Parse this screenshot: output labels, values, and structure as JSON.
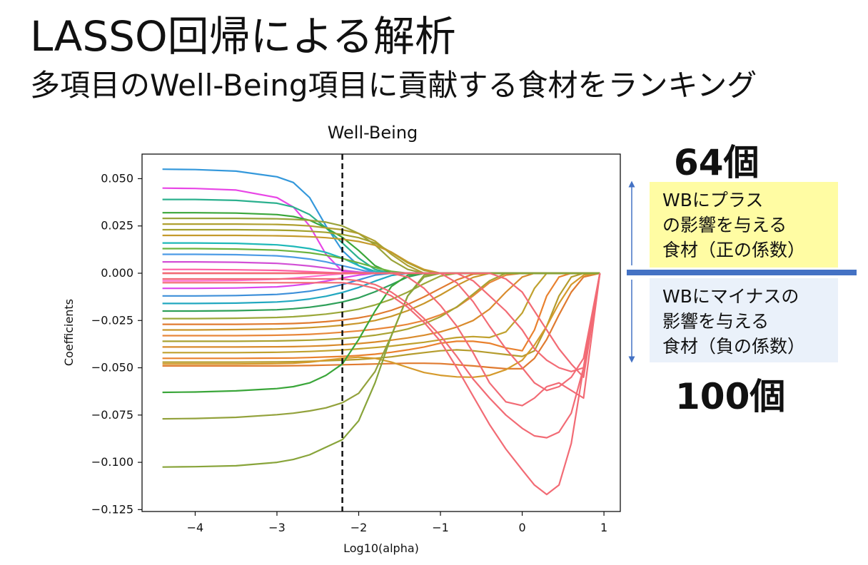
{
  "slide": {
    "title": "LASSO回帰による解析",
    "subtitle": "多項目のWell-Being項目に貢献する食材をランキング"
  },
  "annotations": {
    "positive_count": "64個",
    "negative_count": "100個",
    "positive_box": [
      "WBにプラス",
      "の影響を与える",
      "食材（正の係数）"
    ],
    "negative_box": [
      "WBにマイナスの",
      "影響を与える",
      "食材（負の係数）"
    ],
    "arrow_color": "#4472c4",
    "positive_box_color": "#fffca3",
    "negative_box_color": "#eaf1fa"
  },
  "chart_data": {
    "type": "line",
    "title": "Well-Being",
    "xlabel": "Log10(alpha)",
    "ylabel": "Coefficients",
    "xlim": [
      -4.65,
      1.2
    ],
    "ylim": [
      -0.126,
      0.063
    ],
    "x_ticks": [
      {
        "value": -4,
        "label": "−4"
      },
      {
        "value": -3,
        "label": "−3"
      },
      {
        "value": -2,
        "label": "−2"
      },
      {
        "value": -1,
        "label": "−1"
      },
      {
        "value": 0,
        "label": "0"
      },
      {
        "value": 1,
        "label": "1"
      }
    ],
    "y_ticks": [
      {
        "value": 0.05,
        "label": "0.050"
      },
      {
        "value": 0.025,
        "label": "0.025"
      },
      {
        "value": 0.0,
        "label": "0.000"
      },
      {
        "value": -0.025,
        "label": "−0.025"
      },
      {
        "value": -0.05,
        "label": "−0.050"
      },
      {
        "value": -0.075,
        "label": "−0.075"
      },
      {
        "value": -0.1,
        "label": "−0.100"
      },
      {
        "value": -0.125,
        "label": "−0.125"
      }
    ],
    "selected_alpha_log10": -2.2,
    "x": [
      -4.4,
      -4.0,
      -3.5,
      -3.0,
      -2.8,
      -2.6,
      -2.4,
      -2.2,
      -2.0,
      -1.8,
      -1.6,
      -1.4,
      -1.2,
      -1.0,
      -0.8,
      -0.6,
      -0.4,
      -0.2,
      0.0,
      0.15,
      0.3,
      0.45,
      0.6,
      0.75,
      0.95
    ],
    "series": [
      {
        "color": "#3498db",
        "values": [
          0.055,
          0.0548,
          0.054,
          0.051,
          0.048,
          0.04,
          0.025,
          0.012,
          0.004,
          0,
          0,
          0,
          0,
          0,
          0,
          0,
          0,
          0,
          0,
          0,
          0,
          0,
          0,
          0,
          0
        ]
      },
      {
        "color": "#e846e6",
        "values": [
          0.045,
          0.0448,
          0.044,
          0.04,
          0.035,
          0.025,
          0.01,
          0.001,
          0,
          0,
          0,
          0,
          0,
          0,
          0,
          0,
          0,
          0,
          0,
          0,
          0,
          0,
          0,
          0,
          0
        ]
      },
      {
        "color": "#2bb08e",
        "values": [
          0.039,
          0.039,
          0.0385,
          0.037,
          0.035,
          0.031,
          0.024,
          0.016,
          0.008,
          0.002,
          0,
          0,
          0,
          0,
          0,
          0,
          0,
          0,
          0,
          0,
          0,
          0,
          0,
          0,
          0
        ]
      },
      {
        "color": "#3aa63a",
        "values": [
          0.032,
          0.032,
          0.0318,
          0.031,
          0.03,
          0.028,
          0.024,
          0.019,
          0.012,
          0.004,
          0,
          0,
          0,
          0,
          0,
          0,
          0,
          0,
          0,
          0,
          0,
          0,
          0,
          0,
          0
        ]
      },
      {
        "color": "#9aa33a",
        "values": [
          0.029,
          0.029,
          0.029,
          0.0288,
          0.0285,
          0.028,
          0.027,
          0.025,
          0.021,
          0.015,
          0.007,
          0.002,
          0,
          0,
          0,
          0,
          0,
          0,
          0,
          0,
          0,
          0,
          0,
          0,
          0
        ]
      },
      {
        "color": "#b0a030",
        "values": [
          0.026,
          0.026,
          0.026,
          0.0258,
          0.0255,
          0.025,
          0.024,
          0.023,
          0.021,
          0.017,
          0.01,
          0.004,
          0,
          0,
          0,
          0,
          0,
          0,
          0,
          0,
          0,
          0,
          0,
          0,
          0
        ]
      },
      {
        "color": "#a3a12e",
        "values": [
          0.023,
          0.023,
          0.023,
          0.0228,
          0.0226,
          0.0222,
          0.0216,
          0.0205,
          0.0188,
          0.016,
          0.011,
          0.0055,
          0.0015,
          0,
          0,
          0,
          0,
          0,
          0,
          0,
          0,
          0,
          0,
          0,
          0
        ]
      },
      {
        "color": "#c49a2c",
        "values": [
          0.02,
          0.02,
          0.02,
          0.0198,
          0.0196,
          0.0193,
          0.0188,
          0.018,
          0.0168,
          0.0148,
          0.0112,
          0.006,
          0.002,
          0,
          0,
          0,
          0,
          0,
          0,
          0,
          0,
          0,
          0,
          0,
          0
        ]
      },
      {
        "color": "#1fb8b8",
        "values": [
          0.016,
          0.016,
          0.0158,
          0.015,
          0.0142,
          0.013,
          0.011,
          0.008,
          0.004,
          0.001,
          0,
          0,
          0,
          0,
          0,
          0,
          0,
          0,
          0,
          0,
          0,
          0,
          0,
          0,
          0
        ]
      },
      {
        "color": "#6cb33e",
        "values": [
          0.013,
          0.013,
          0.0128,
          0.0122,
          0.0116,
          0.0108,
          0.0095,
          0.0078,
          0.0055,
          0.003,
          0.001,
          0,
          0,
          0,
          0,
          0,
          0,
          0,
          0,
          0,
          0,
          0,
          0,
          0,
          0
        ]
      },
      {
        "color": "#4d9be6",
        "values": [
          0.01,
          0.01,
          0.0098,
          0.0092,
          0.0085,
          0.0075,
          0.006,
          0.004,
          0.002,
          0,
          0,
          0,
          0,
          0,
          0,
          0,
          0,
          0,
          0,
          0,
          0,
          0,
          0,
          0,
          0
        ]
      },
      {
        "color": "#d24fd6",
        "values": [
          0.006,
          0.006,
          0.0058,
          0.0052,
          0.0046,
          0.0038,
          0.0028,
          0.0016,
          0.0006,
          0,
          0,
          0,
          0,
          0,
          0,
          0,
          0,
          0,
          0,
          0,
          0,
          0,
          0,
          0,
          0
        ]
      },
      {
        "color": "#ff5da2",
        "values": [
          0.002,
          0.002,
          0.0018,
          0.0015,
          0.0012,
          0.0008,
          0.0004,
          0.0001,
          0,
          0,
          0,
          0,
          0,
          0,
          0,
          0,
          0,
          0,
          0,
          0,
          0,
          0,
          0,
          0,
          0
        ]
      },
      {
        "color": "#ff6fcf",
        "values": [
          -0.004,
          -0.004,
          -0.0038,
          -0.0032,
          -0.0026,
          -0.0018,
          -0.001,
          -0.0003,
          0,
          0,
          0,
          0,
          0,
          0,
          0,
          0,
          0,
          0,
          0,
          0,
          0,
          0,
          0,
          0,
          0
        ]
      },
      {
        "color": "#d946ef",
        "values": [
          -0.008,
          -0.008,
          -0.0078,
          -0.0072,
          -0.0065,
          -0.0055,
          -0.0042,
          -0.0025,
          -0.001,
          0,
          0,
          0,
          0,
          0,
          0,
          0,
          0,
          0,
          0,
          0,
          0,
          0,
          0,
          0,
          0
        ]
      },
      {
        "color": "#3d8fd9",
        "values": [
          -0.012,
          -0.012,
          -0.0118,
          -0.0112,
          -0.0105,
          -0.0095,
          -0.008,
          -0.006,
          -0.0035,
          -0.001,
          0,
          0,
          0,
          0,
          0,
          0,
          0,
          0,
          0,
          0,
          0,
          0,
          0,
          0,
          0
        ]
      },
      {
        "color": "#22a8c0",
        "values": [
          -0.016,
          -0.016,
          -0.0158,
          -0.0152,
          -0.0146,
          -0.0136,
          -0.0122,
          -0.0102,
          -0.0075,
          -0.0042,
          -0.0012,
          0,
          0,
          0,
          0,
          0,
          0,
          0,
          0,
          0,
          0,
          0,
          0,
          0,
          0
        ]
      },
      {
        "color": "#2fa05a",
        "values": [
          -0.02,
          -0.02,
          -0.0198,
          -0.0193,
          -0.0188,
          -0.018,
          -0.0168,
          -0.0152,
          -0.013,
          -0.0098,
          -0.006,
          -0.002,
          0,
          0,
          0,
          0,
          0,
          0,
          0,
          0,
          0,
          0,
          0,
          0,
          0
        ]
      },
      {
        "color": "#9ba83a",
        "values": [
          -0.024,
          -0.024,
          -0.0238,
          -0.0234,
          -0.023,
          -0.0224,
          -0.0216,
          -0.0205,
          -0.019,
          -0.0168,
          -0.0138,
          -0.01,
          -0.0055,
          -0.0015,
          0,
          0,
          0,
          0,
          0,
          0,
          0,
          0,
          0,
          0,
          0
        ]
      },
      {
        "color": "#e07b30",
        "values": [
          -0.027,
          -0.027,
          -0.027,
          -0.0268,
          -0.0266,
          -0.0262,
          -0.0256,
          -0.0248,
          -0.0236,
          -0.022,
          -0.0196,
          -0.0165,
          -0.0125,
          -0.008,
          -0.0035,
          -0.0005,
          0,
          0,
          0,
          0,
          0,
          0,
          0,
          0,
          0
        ]
      },
      {
        "color": "#c9962a",
        "values": [
          -0.03,
          -0.03,
          -0.0298,
          -0.0295,
          -0.0292,
          -0.0288,
          -0.0282,
          -0.0275,
          -0.0265,
          -0.025,
          -0.0228,
          -0.0198,
          -0.016,
          -0.0115,
          -0.0065,
          -0.0022,
          0,
          0,
          0,
          0,
          0,
          0,
          0,
          0,
          0
        ]
      },
      {
        "color": "#e8873a",
        "values": [
          -0.033,
          -0.033,
          -0.033,
          -0.0328,
          -0.0326,
          -0.0323,
          -0.0318,
          -0.0312,
          -0.0305,
          -0.0296,
          -0.0285,
          -0.027,
          -0.025,
          -0.022,
          -0.018,
          -0.012,
          -0.005,
          -0.001,
          0,
          0,
          0,
          0,
          0,
          0,
          0
        ]
      },
      {
        "color": "#a9a232",
        "values": [
          -0.036,
          -0.036,
          -0.036,
          -0.0358,
          -0.0356,
          -0.0354,
          -0.035,
          -0.0345,
          -0.0338,
          -0.0328,
          -0.0314,
          -0.0295,
          -0.0268,
          -0.023,
          -0.0178,
          -0.011,
          -0.004,
          0,
          0,
          0,
          0,
          0,
          0,
          0,
          0
        ]
      },
      {
        "color": "#d98b2c",
        "values": [
          -0.039,
          -0.039,
          -0.039,
          -0.0389,
          -0.0388,
          -0.0386,
          -0.0383,
          -0.0378,
          -0.0372,
          -0.0364,
          -0.0354,
          -0.0342,
          -0.0328,
          -0.031,
          -0.0285,
          -0.025,
          -0.019,
          -0.01,
          -0.002,
          0,
          0,
          0,
          0,
          0,
          0
        ]
      },
      {
        "color": "#c0a12e",
        "values": [
          -0.042,
          -0.042,
          -0.042,
          -0.0418,
          -0.0416,
          -0.0414,
          -0.041,
          -0.0406,
          -0.04,
          -0.0393,
          -0.0385,
          -0.0375,
          -0.0365,
          -0.0352,
          -0.034,
          -0.0335,
          -0.034,
          -0.031,
          -0.021,
          -0.008,
          0,
          0,
          0,
          0,
          0
        ]
      },
      {
        "color": "#e9812e",
        "values": [
          -0.045,
          -0.045,
          -0.045,
          -0.0449,
          -0.0448,
          -0.0446,
          -0.0443,
          -0.044,
          -0.0435,
          -0.0428,
          -0.0418,
          -0.0405,
          -0.039,
          -0.037,
          -0.036,
          -0.036,
          -0.037,
          -0.0395,
          -0.041,
          -0.03,
          -0.012,
          -0.002,
          0,
          0,
          0
        ]
      },
      {
        "color": "#b59c2d",
        "values": [
          -0.047,
          -0.047,
          -0.047,
          -0.0469,
          -0.0468,
          -0.0466,
          -0.0463,
          -0.046,
          -0.0456,
          -0.045,
          -0.0442,
          -0.043,
          -0.042,
          -0.041,
          -0.0405,
          -0.041,
          -0.042,
          -0.043,
          -0.044,
          -0.041,
          -0.028,
          -0.012,
          -0.002,
          0,
          0
        ]
      },
      {
        "color": "#e07b30",
        "values": [
          -0.049,
          -0.049,
          -0.049,
          -0.049,
          -0.0489,
          -0.0488,
          -0.0486,
          -0.0484,
          -0.0482,
          -0.048,
          -0.0478,
          -0.0476,
          -0.0476,
          -0.0478,
          -0.0484,
          -0.049,
          -0.0498,
          -0.0505,
          -0.0505,
          -0.045,
          -0.035,
          -0.022,
          -0.01,
          -0.002,
          0
        ]
      },
      {
        "color": "#d59a2c",
        "values": [
          -0.048,
          -0.048,
          -0.048,
          -0.0478,
          -0.0476,
          -0.047,
          -0.046,
          -0.045,
          -0.0444,
          -0.045,
          -0.047,
          -0.0498,
          -0.0525,
          -0.054,
          -0.0548,
          -0.055,
          -0.054,
          -0.051,
          -0.046,
          -0.038,
          -0.028,
          -0.016,
          -0.006,
          -0.001,
          0
        ]
      },
      {
        "color": "#3aa63a",
        "values": [
          -0.063,
          -0.0628,
          -0.0622,
          -0.061,
          -0.06,
          -0.058,
          -0.054,
          -0.048,
          -0.035,
          -0.02,
          -0.007,
          -0.001,
          0,
          0,
          0,
          0,
          0,
          0,
          0,
          0,
          0,
          0,
          0,
          0,
          0
        ]
      },
      {
        "color": "#93a23c",
        "values": [
          -0.077,
          -0.0768,
          -0.0762,
          -0.0748,
          -0.074,
          -0.0728,
          -0.0712,
          -0.0685,
          -0.0635,
          -0.052,
          -0.033,
          -0.012,
          -0.001,
          0,
          0,
          0,
          0,
          0,
          0,
          0,
          0,
          0,
          0,
          0,
          0
        ]
      },
      {
        "color": "#88a43a",
        "values": [
          -0.1025,
          -0.1023,
          -0.1018,
          -0.1,
          -0.0985,
          -0.096,
          -0.092,
          -0.088,
          -0.078,
          -0.058,
          -0.033,
          -0.012,
          -0.002,
          0,
          0,
          0,
          0,
          0,
          0,
          0,
          0,
          0,
          0,
          0,
          0
        ]
      },
      {
        "color": "#f26b75",
        "values": [
          -0.005,
          -0.005,
          -0.005,
          -0.005,
          -0.005,
          -0.005,
          -0.005,
          -0.005,
          -0.006,
          -0.008,
          -0.012,
          -0.018,
          -0.026,
          -0.036,
          -0.05,
          -0.065,
          -0.08,
          -0.093,
          -0.104,
          -0.112,
          -0.117,
          -0.112,
          -0.09,
          -0.05,
          0
        ]
      },
      {
        "color": "#f26b75",
        "values": [
          -0.003,
          -0.003,
          -0.003,
          -0.003,
          -0.003,
          -0.003,
          -0.003,
          -0.003,
          -0.004,
          -0.006,
          -0.01,
          -0.016,
          -0.024,
          -0.033,
          -0.044,
          -0.056,
          -0.066,
          -0.075,
          -0.082,
          -0.086,
          -0.087,
          -0.084,
          -0.074,
          -0.05,
          0
        ]
      },
      {
        "color": "#f26b75",
        "values": [
          0,
          0,
          0,
          0,
          0,
          0,
          0,
          0,
          0,
          0,
          0,
          -0.002,
          -0.008,
          -0.017,
          -0.028,
          -0.042,
          -0.058,
          -0.068,
          -0.07,
          -0.066,
          -0.06,
          -0.058,
          -0.062,
          -0.066,
          0
        ]
      },
      {
        "color": "#f26b75",
        "values": [
          0,
          0,
          0,
          0,
          0,
          0,
          0,
          0,
          0,
          0,
          0,
          0,
          0,
          0,
          -0.005,
          -0.015,
          -0.028,
          -0.04,
          -0.05,
          -0.058,
          -0.062,
          -0.06,
          -0.055,
          -0.045,
          0
        ]
      },
      {
        "color": "#f26b75",
        "values": [
          0,
          0,
          0,
          0,
          0,
          0,
          0,
          0,
          0,
          0,
          0,
          0,
          0,
          0,
          0,
          -0.004,
          -0.012,
          -0.02,
          -0.03,
          -0.04,
          -0.046,
          -0.05,
          -0.052,
          -0.05,
          0
        ]
      },
      {
        "color": "#f26b75",
        "values": [
          0,
          0,
          0,
          0,
          0,
          0,
          0,
          0,
          0,
          0,
          0,
          0,
          0,
          0,
          0,
          0,
          0,
          -0.003,
          -0.01,
          -0.02,
          -0.03,
          -0.04,
          -0.048,
          -0.055,
          0
        ]
      }
    ]
  }
}
